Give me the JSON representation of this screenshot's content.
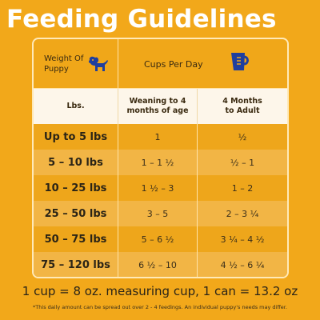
{
  "title": "Feeding Guidelines",
  "header": {
    "weight_label_line1": "Weight Of",
    "weight_label_line2": "Puppy",
    "cups_label": "Cups Per Day",
    "puppy_icon": "puppy-icon",
    "cup_icon": "measuring-cup-icon",
    "icon_color": "#1f3f9e"
  },
  "subheader": {
    "lbs": "Lbs.",
    "col2_line1": "Weaning to 4",
    "col2_line2": "months of age",
    "col3_line1": "4 Months",
    "col3_line2": "to Adult"
  },
  "rows": [
    {
      "weight": "Up to 5 lbs",
      "weaning": "1",
      "adult": "½"
    },
    {
      "weight": "5 – 10 lbs",
      "weaning": "1 – 1 ½",
      "adult": "½ – 1"
    },
    {
      "weight": "10 – 25 lbs",
      "weaning": "1 ½ – 3",
      "adult": "1 – 2"
    },
    {
      "weight": "25 – 50 lbs",
      "weaning": "3 – 5",
      "adult": "2 – 3 ¼"
    },
    {
      "weight": "50 – 75 lbs",
      "weaning": "5 – 6 ½",
      "adult": "3 ¼ – 4 ½"
    },
    {
      "weight": "75 – 120 lbs",
      "weaning": "6 ½ – 10",
      "adult": "4 ½ – 6 ¼"
    }
  ],
  "footer": {
    "main": "1 cup = 8 oz. measuring cup, 1 can = 13.2 oz",
    "note": "*This daily amount can be spread out over 2 - 4 feedings. An individual puppy's needs may differ."
  },
  "colors": {
    "background": "#f2a81a",
    "row_dark": "#eea61b",
    "row_light": "#f2b545",
    "subheader_bg": "#fdf6ea"
  }
}
